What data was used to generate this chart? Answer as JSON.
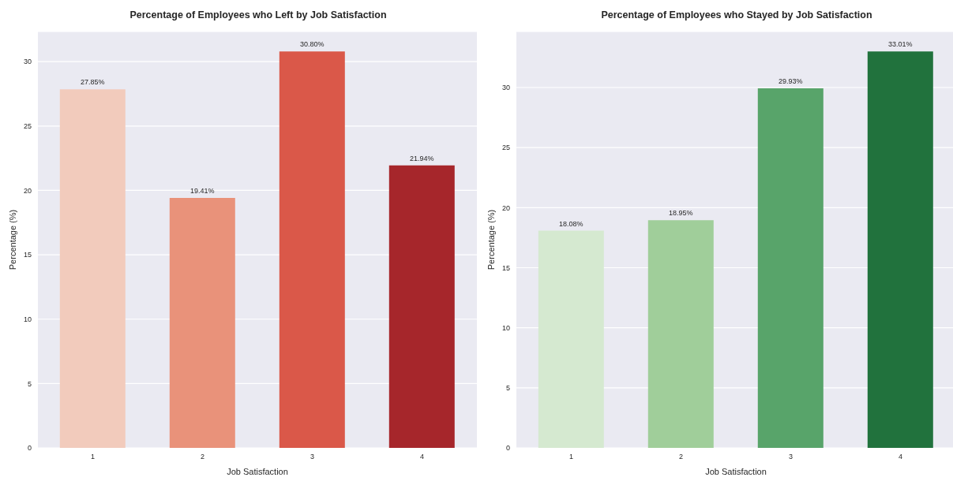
{
  "chart_data": [
    {
      "type": "bar",
      "title": "Percentage of Employees who Left by Job Satisfaction",
      "xlabel": "Job Satisfaction",
      "ylabel": "Percentage (%)",
      "categories": [
        "1",
        "2",
        "3",
        "4"
      ],
      "values": [
        27.85,
        19.41,
        30.8,
        21.94
      ],
      "colors": [
        "#f2cbbc",
        "#e9927a",
        "#da5849",
        "#a6262b"
      ],
      "value_labels": [
        "27.85%",
        "19.41%",
        "30.80%",
        "21.94%"
      ],
      "ylim": [
        0,
        32.34
      ],
      "yticks": [
        0,
        5,
        10,
        15,
        20,
        25,
        30
      ],
      "grid": "y"
    },
    {
      "type": "bar",
      "title": "Percentage of Employees who Stayed by Job Satisfaction",
      "xlabel": "Job Satisfaction",
      "ylabel": "Percentage (%)",
      "categories": [
        "1",
        "2",
        "3",
        "4"
      ],
      "values": [
        18.08,
        18.95,
        29.93,
        33.01
      ],
      "colors": [
        "#d5e9d0",
        "#a0ce9a",
        "#58a46a",
        "#21723d"
      ],
      "value_labels": [
        "18.08%",
        "18.95%",
        "29.93%",
        "33.01%"
      ],
      "ylim": [
        0,
        34.66
      ],
      "yticks": [
        0,
        5,
        10,
        15,
        20,
        25,
        30
      ],
      "grid": "y"
    }
  ]
}
